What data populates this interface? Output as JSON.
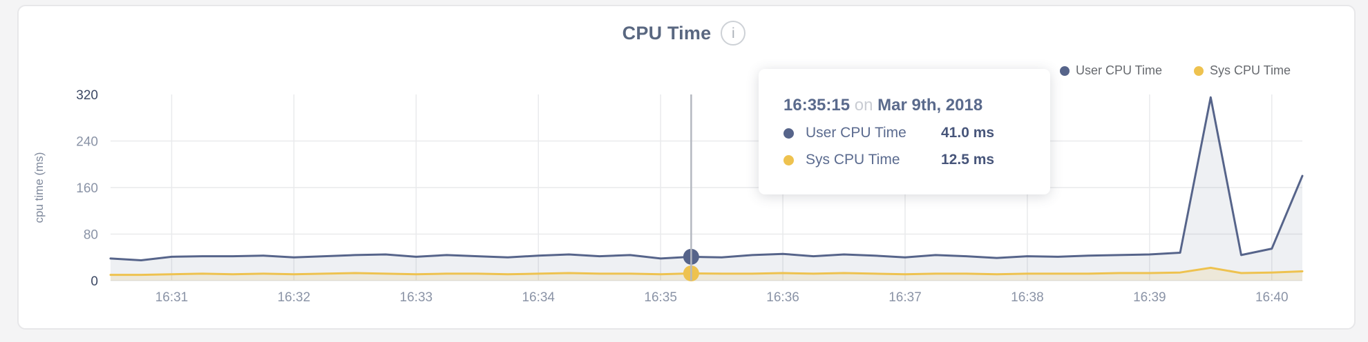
{
  "header": {
    "title": "CPU Time",
    "info_glyph": "i"
  },
  "legend": {
    "items": [
      {
        "label": "User CPU Time",
        "color": "#56648a"
      },
      {
        "label": "Sys CPU Time",
        "color": "#eec24f"
      }
    ]
  },
  "chart_data": {
    "type": "area",
    "title": "CPU Time",
    "xlabel": "",
    "ylabel": "cpu time (ms)",
    "ylim": [
      0,
      320
    ],
    "yticks": [
      0,
      80,
      160,
      240,
      320
    ],
    "x_tick_labels": [
      "16:31",
      "16:32",
      "16:33",
      "16:34",
      "16:35",
      "16:36",
      "16:37",
      "16:38",
      "16:39",
      "16:40"
    ],
    "grid": true,
    "legend_position": "top-right",
    "x": [
      "16:30:30",
      "16:30:45",
      "16:31:00",
      "16:31:15",
      "16:31:30",
      "16:31:45",
      "16:32:00",
      "16:32:15",
      "16:32:30",
      "16:32:45",
      "16:33:00",
      "16:33:15",
      "16:33:30",
      "16:33:45",
      "16:34:00",
      "16:34:15",
      "16:34:30",
      "16:34:45",
      "16:35:00",
      "16:35:15",
      "16:35:30",
      "16:35:45",
      "16:36:00",
      "16:36:15",
      "16:36:30",
      "16:36:45",
      "16:37:00",
      "16:37:15",
      "16:37:30",
      "16:37:45",
      "16:38:00",
      "16:38:15",
      "16:38:30",
      "16:38:45",
      "16:39:00",
      "16:39:15",
      "16:39:30",
      "16:39:45",
      "16:40:00",
      "16:40:15"
    ],
    "series": [
      {
        "name": "User CPU Time",
        "color": "#56648a",
        "fill": "rgba(91,104,134,0.10)",
        "values": [
          38,
          35,
          41,
          42,
          42,
          43,
          40,
          42,
          44,
          45,
          41,
          44,
          42,
          40,
          43,
          45,
          42,
          44,
          38,
          41,
          40,
          44,
          46,
          42,
          45,
          43,
          40,
          44,
          42,
          39,
          42,
          41,
          43,
          44,
          45,
          48,
          315,
          44,
          55,
          180
        ]
      },
      {
        "name": "Sys CPU Time",
        "color": "#eec24f",
        "fill": "rgba(238,192,82,0.16)",
        "values": [
          10,
          10,
          11,
          12,
          11,
          12,
          11,
          12,
          13,
          12,
          11,
          12,
          12,
          11,
          12,
          13,
          12,
          12,
          11,
          12.5,
          12,
          12,
          13,
          12,
          13,
          12,
          11,
          12,
          12,
          11,
          12,
          12,
          12,
          13,
          13,
          14,
          22,
          13,
          14,
          16
        ]
      }
    ],
    "grid_color": "#e9eaec",
    "axis_tick_color": "#8a93a6",
    "axis_tick_emphasis_color": "#3b4763",
    "ylabel_color": "#7e889b",
    "hover_line_color": "#b4b8c0"
  },
  "tooltip": {
    "time": "16:35:15",
    "conjunction": "on",
    "date": "Mar 9th, 2018",
    "hover_index": 19,
    "rows": [
      {
        "label": "User CPU Time",
        "value": "41.0 ms",
        "color": "#56648a"
      },
      {
        "label": "Sys CPU Time",
        "value": "12.5 ms",
        "color": "#eec24f"
      }
    ]
  }
}
